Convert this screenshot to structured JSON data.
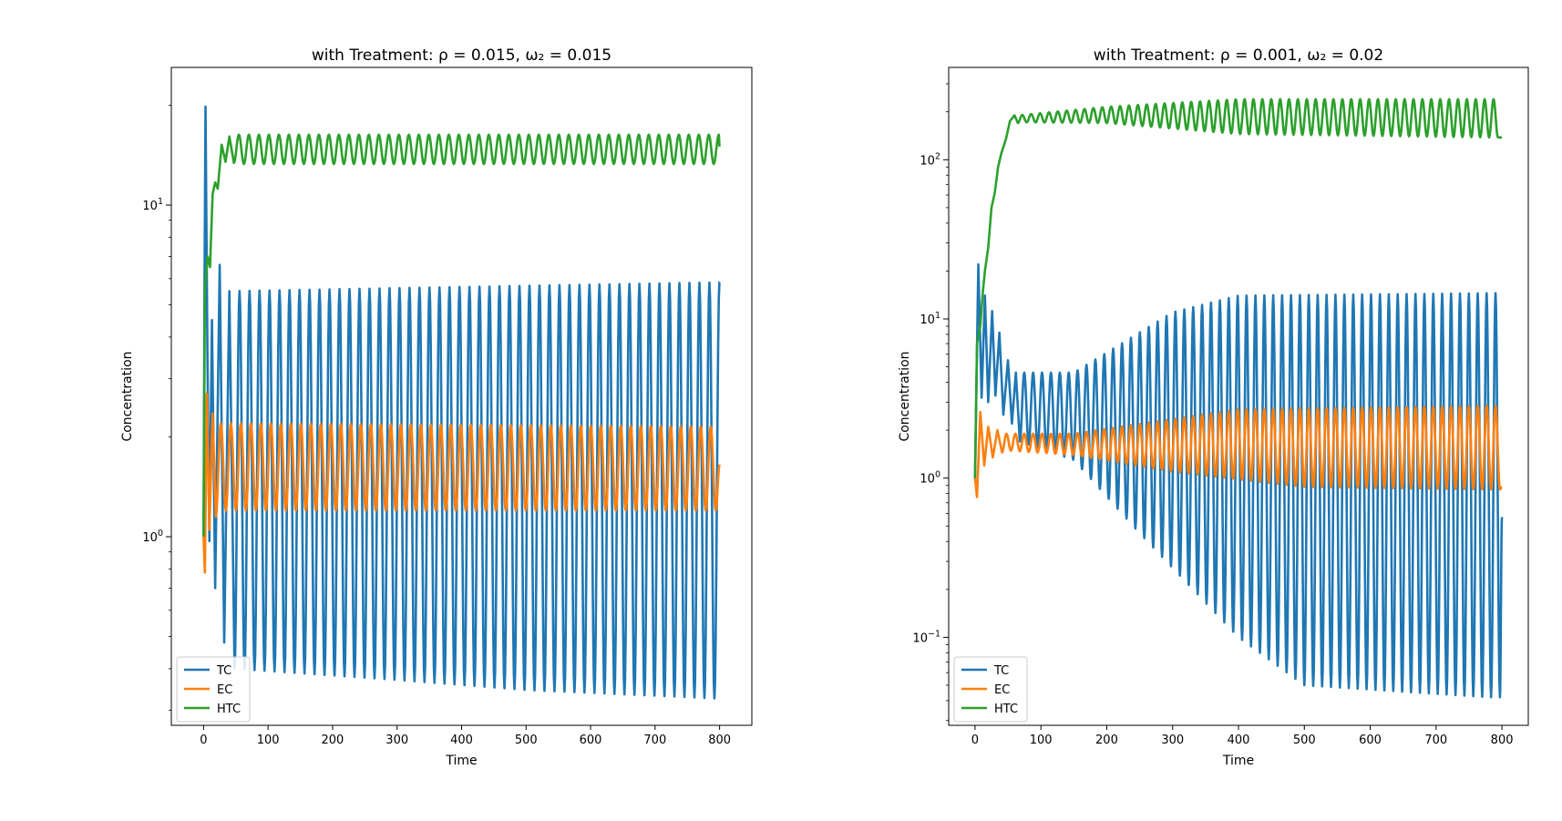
{
  "chart_data": [
    {
      "type": "line",
      "title": "with Treatment: ρ = 0.015, ω₂ = 0.015",
      "xlabel": "Time",
      "ylabel": "Concentration",
      "xlim": [
        -50,
        850
      ],
      "xticks": [
        0,
        100,
        200,
        300,
        400,
        500,
        600,
        700,
        800
      ],
      "yscale": "log",
      "ylim": [
        0.27,
        26
      ],
      "yticks": [
        {
          "value": 1,
          "base": "10",
          "exp": "0"
        },
        {
          "value": 10,
          "base": "10",
          "exp": "1"
        }
      ],
      "legend": "lower-left",
      "series": [
        {
          "name": "TC",
          "color": "#1f77b4",
          "initial": [
            [
              0,
              1.0
            ],
            [
              1.5,
              6.0
            ],
            [
              3,
              19.8
            ],
            [
              6,
              3.5
            ],
            [
              9,
              0.97
            ],
            [
              13,
              4.5
            ],
            [
              18,
              0.7
            ],
            [
              25,
              6.6
            ],
            [
              32,
              0.48
            ],
            [
              40,
              5.5
            ],
            [
              48,
              0.4
            ]
          ],
          "period": 15.5,
          "peaks": [
            [
              40,
              5.5
            ],
            [
              800,
              5.85
            ]
          ],
          "troughs": [
            [
              48,
              0.4
            ],
            [
              300,
              0.37
            ],
            [
              500,
              0.345
            ],
            [
              800,
              0.325
            ]
          ],
          "x_end": 800,
          "y_end": 5.85
        },
        {
          "name": "EC",
          "color": "#ff7f0e",
          "initial": [
            [
              0,
              1.0
            ],
            [
              2,
              0.78
            ],
            [
              5,
              2.7
            ],
            [
              9,
              1.05
            ],
            [
              14,
              2.35
            ],
            [
              19,
              1.15
            ]
          ],
          "period": 15.5,
          "peaks": [
            [
              19,
              2.2
            ],
            [
              800,
              2.15
            ]
          ],
          "troughs": [
            [
              19,
              1.2
            ],
            [
              800,
              1.2
            ]
          ],
          "x_end": 800,
          "y_end": 1.65
        },
        {
          "name": "HTC",
          "color": "#2ca02c",
          "initial": [
            [
              0,
              1.0
            ],
            [
              2,
              5.5
            ],
            [
              6,
              7.0
            ],
            [
              10,
              6.5
            ],
            [
              14,
              10.8
            ],
            [
              18,
              11.7
            ],
            [
              22,
              11.2
            ],
            [
              28,
              15.2
            ],
            [
              34,
              13.5
            ],
            [
              40,
              16.1
            ],
            [
              47,
              13.4
            ]
          ],
          "period": 15.5,
          "peaks": [
            [
              47,
              16.3
            ],
            [
              800,
              16.3
            ]
          ],
          "troughs": [
            [
              47,
              13.3
            ],
            [
              800,
              13.3
            ]
          ],
          "x_end": 800,
          "y_end": 15.0
        }
      ]
    },
    {
      "type": "line",
      "title": "with Treatment: ρ = 0.001, ω₂ = 0.02",
      "xlabel": "Time",
      "ylabel": "Concentration",
      "xlim": [
        -40,
        840
      ],
      "xticks": [
        0,
        100,
        200,
        300,
        400,
        500,
        600,
        700,
        800
      ],
      "yscale": "log",
      "ylim": [
        0.028,
        380
      ],
      "yticks": [
        {
          "value": 0.1,
          "base": "10",
          "exp": "−1"
        },
        {
          "value": 1,
          "base": "10",
          "exp": "0"
        },
        {
          "value": 10,
          "base": "10",
          "exp": "1"
        },
        {
          "value": 100,
          "base": "10",
          "exp": "2"
        }
      ],
      "legend": "lower-left",
      "series": [
        {
          "name": "TC",
          "color": "#1f77b4",
          "initial": [
            [
              0,
              1.0
            ],
            [
              5,
              22
            ],
            [
              10,
              3.2
            ],
            [
              15,
              14
            ],
            [
              20,
              3.0
            ],
            [
              26,
              11.2
            ],
            [
              31,
              3.3
            ],
            [
              37,
              8.2
            ],
            [
              43,
              2.5
            ],
            [
              50,
              5.5
            ],
            [
              56,
              2.2
            ],
            [
              62,
              4.6
            ],
            [
              68,
              1.7
            ]
          ],
          "period": 13.5,
          "peaks": [
            [
              62,
              4.6
            ],
            [
              150,
              4.6
            ],
            [
              300,
              11.0
            ],
            [
              400,
              14.0
            ],
            [
              780,
              14.5
            ]
          ],
          "troughs": [
            [
              68,
              1.7
            ],
            [
              150,
              1.3
            ],
            [
              250,
              0.45
            ],
            [
              400,
              0.1
            ],
            [
              500,
              0.05
            ],
            [
              780,
              0.042
            ]
          ],
          "x_end": 800,
          "y_end": 0.57
        },
        {
          "name": "EC",
          "color": "#ff7f0e",
          "initial": [
            [
              0,
              1.0
            ],
            [
              3,
              0.76
            ],
            [
              8,
              2.6
            ],
            [
              14,
              1.2
            ],
            [
              20,
              2.1
            ],
            [
              27,
              1.35
            ],
            [
              34,
              2.0
            ],
            [
              41,
              1.45
            ]
          ],
          "period": 13.5,
          "peaks": [
            [
              41,
              1.9
            ],
            [
              150,
              1.9
            ],
            [
              400,
              2.7
            ],
            [
              780,
              2.85
            ]
          ],
          "troughs": [
            [
              41,
              1.5
            ],
            [
              150,
              1.4
            ],
            [
              300,
              1.1
            ],
            [
              500,
              0.88
            ],
            [
              780,
              0.85
            ]
          ],
          "x_end": 800,
          "y_end": 0.88
        },
        {
          "name": "HTC",
          "color": "#2ca02c",
          "initial": [
            [
              0,
              1.0
            ],
            [
              3,
              7.0
            ],
            [
              8,
              9.0
            ],
            [
              12,
              15.0
            ],
            [
              15,
              20.0
            ],
            [
              20,
              28.0
            ],
            [
              25,
              50.0
            ],
            [
              30,
              62.0
            ],
            [
              35,
              90.0
            ],
            [
              40,
              110.0
            ],
            [
              47,
              135.0
            ],
            [
              53,
              175.0
            ],
            [
              60,
              190.0
            ],
            [
              65,
              170.0
            ]
          ],
          "period": 13.5,
          "peaks": [
            [
              65,
              190
            ],
            [
              200,
              215
            ],
            [
              400,
              240
            ],
            [
              790,
              240
            ]
          ],
          "troughs": [
            [
              65,
              172
            ],
            [
              200,
              170
            ],
            [
              400,
              145
            ],
            [
              790,
              138
            ]
          ],
          "x_end": 800,
          "y_end": 138
        }
      ]
    }
  ]
}
